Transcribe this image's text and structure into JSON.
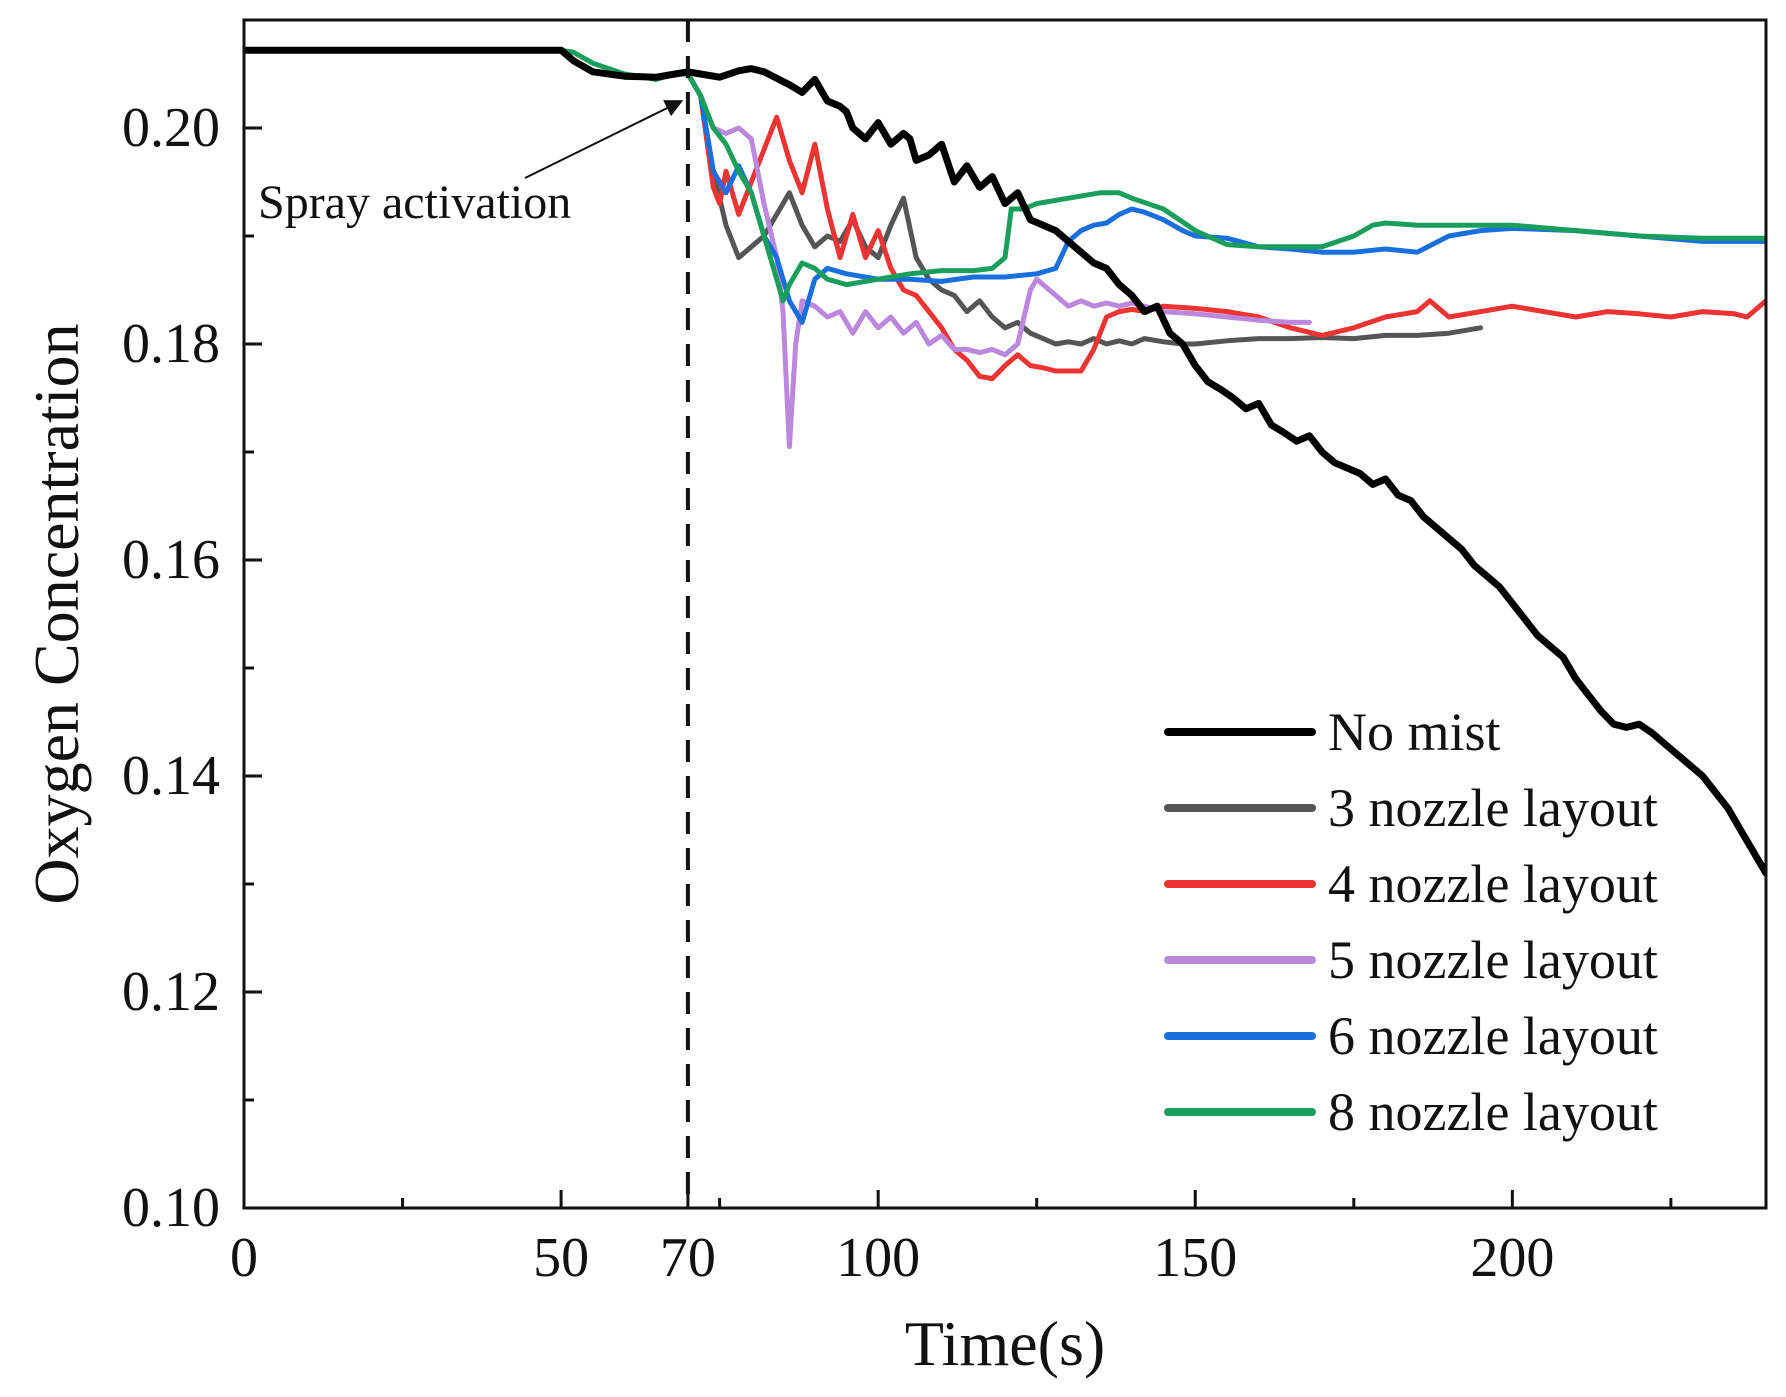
{
  "chart_data": {
    "type": "line",
    "title": "",
    "xlabel": "Time(s)",
    "ylabel": "Oxygen Concentration",
    "xlim": [
      0,
      240
    ],
    "ylim": [
      0.1,
      0.21
    ],
    "x_ticks": [
      0,
      50,
      70,
      100,
      150,
      200
    ],
    "x_tick_labels": [
      "0",
      "50",
      "70",
      "100",
      "150",
      "200"
    ],
    "x_minor_ticks": [
      25,
      75,
      125,
      175,
      225
    ],
    "y_ticks": [
      0.1,
      0.12,
      0.14,
      0.16,
      0.18,
      0.2
    ],
    "y_tick_labels": [
      "0.10",
      "0.12",
      "0.14",
      "0.16",
      "0.18",
      "0.20"
    ],
    "y_minor_ticks": [
      0.11,
      0.13,
      0.15,
      0.17,
      0.19
    ],
    "grid": false,
    "legend_position": "bottom-right",
    "annotation": {
      "text": "Spray activation",
      "time": 70,
      "arrow_to": [
        69,
        0.2025
      ]
    },
    "series": [
      {
        "name": "No mist",
        "color": "#000000",
        "x": [
          0,
          50,
          52,
          55,
          60,
          65,
          68,
          70,
          72,
          75,
          78,
          80,
          82,
          84,
          86,
          88,
          90,
          92,
          94,
          95,
          96,
          98,
          100,
          102,
          104,
          105,
          106,
          108,
          110,
          112,
          114,
          116,
          118,
          120,
          122,
          124,
          126,
          128,
          130,
          132,
          134,
          136,
          138,
          140,
          142,
          144,
          146,
          148,
          150,
          152,
          154,
          156,
          158,
          160,
          162,
          164,
          166,
          168,
          170,
          172,
          174,
          176,
          178,
          180,
          182,
          184,
          186,
          188,
          190,
          192,
          194,
          196,
          198,
          200,
          202,
          204,
          206,
          208,
          210,
          212,
          214,
          216,
          218,
          220,
          222,
          224,
          226,
          228,
          230,
          232,
          234,
          236,
          238,
          240
        ],
        "y": [
          0.2072,
          0.2072,
          0.2062,
          0.2052,
          0.2048,
          0.2047,
          0.205,
          0.2052,
          0.205,
          0.2047,
          0.2053,
          0.2055,
          0.2052,
          0.2046,
          0.204,
          0.2033,
          0.2045,
          0.2025,
          0.202,
          0.2015,
          0.2,
          0.199,
          0.2005,
          0.1985,
          0.1995,
          0.199,
          0.197,
          0.1975,
          0.1985,
          0.195,
          0.1965,
          0.1945,
          0.1955,
          0.193,
          0.194,
          0.1915,
          0.191,
          0.1905,
          0.1895,
          0.1885,
          0.1875,
          0.187,
          0.1855,
          0.1845,
          0.183,
          0.1835,
          0.181,
          0.18,
          0.178,
          0.1765,
          0.1758,
          0.175,
          0.174,
          0.1745,
          0.1725,
          0.1718,
          0.171,
          0.1715,
          0.17,
          0.169,
          0.1685,
          0.168,
          0.167,
          0.1675,
          0.166,
          0.1655,
          0.164,
          0.163,
          0.162,
          0.161,
          0.1595,
          0.1585,
          0.1575,
          0.156,
          0.1545,
          0.153,
          0.152,
          0.151,
          0.149,
          0.1475,
          0.146,
          0.1448,
          0.1445,
          0.1448,
          0.144,
          0.143,
          0.142,
          0.141,
          0.14,
          0.1385,
          0.137,
          0.135,
          0.133,
          0.131
        ]
      },
      {
        "name": "3 nozzle layout",
        "color": "#555555",
        "x": [
          52,
          55,
          60,
          65,
          68,
          70,
          72,
          74,
          76,
          78,
          80,
          82,
          84,
          86,
          88,
          90,
          92,
          94,
          96,
          98,
          100,
          102,
          104,
          106,
          108,
          110,
          112,
          114,
          116,
          118,
          120,
          122,
          124,
          126,
          128,
          130,
          132,
          134,
          136,
          138,
          140,
          142,
          145,
          148,
          150,
          155,
          160,
          165,
          170,
          175,
          180,
          185,
          190,
          195
        ],
        "y": [
          0.2062,
          0.2052,
          0.2048,
          0.2047,
          0.205,
          0.205,
          0.203,
          0.196,
          0.191,
          0.188,
          0.189,
          0.19,
          0.192,
          0.194,
          0.191,
          0.189,
          0.19,
          0.1895,
          0.1915,
          0.189,
          0.188,
          0.191,
          0.1935,
          0.188,
          0.186,
          0.185,
          0.1845,
          0.183,
          0.184,
          0.1825,
          0.1815,
          0.182,
          0.181,
          0.1805,
          0.18,
          0.1802,
          0.18,
          0.1805,
          0.18,
          0.1803,
          0.18,
          0.1805,
          0.1802,
          0.18,
          0.18,
          0.1803,
          0.1805,
          0.1805,
          0.1806,
          0.1805,
          0.1808,
          0.1808,
          0.181,
          0.1815
        ]
      },
      {
        "name": "4 nozzle layout",
        "color": "#ee3333",
        "x": [
          52,
          55,
          60,
          65,
          68,
          70,
          72,
          74,
          75,
          76,
          78,
          80,
          82,
          84,
          86,
          88,
          90,
          92,
          94,
          96,
          98,
          100,
          102,
          104,
          106,
          108,
          110,
          112,
          114,
          116,
          118,
          120,
          122,
          124,
          126,
          128,
          130,
          132,
          134,
          136,
          138,
          140,
          142,
          145,
          150,
          155,
          160,
          165,
          170,
          175,
          180,
          185,
          187,
          190,
          195,
          200,
          205,
          210,
          215,
          220,
          225,
          230,
          235,
          237,
          240
        ],
        "y": [
          0.2062,
          0.2052,
          0.2048,
          0.2047,
          0.205,
          0.205,
          0.203,
          0.1945,
          0.193,
          0.196,
          0.192,
          0.195,
          0.198,
          0.201,
          0.197,
          0.194,
          0.1985,
          0.1925,
          0.188,
          0.192,
          0.188,
          0.1905,
          0.187,
          0.185,
          0.1845,
          0.183,
          0.1815,
          0.1795,
          0.1785,
          0.177,
          0.1768,
          0.178,
          0.179,
          0.178,
          0.1778,
          0.1775,
          0.1775,
          0.1775,
          0.1795,
          0.1825,
          0.183,
          0.1832,
          0.183,
          0.1835,
          0.1833,
          0.183,
          0.1825,
          0.1815,
          0.1808,
          0.1815,
          0.1825,
          0.183,
          0.184,
          0.1825,
          0.183,
          0.1835,
          0.183,
          0.1825,
          0.183,
          0.1828,
          0.1825,
          0.183,
          0.1828,
          0.1825,
          0.184
        ]
      },
      {
        "name": "5 nozzle layout",
        "color": "#bb88dd",
        "x": [
          72,
          74,
          76,
          78,
          80,
          82,
          84,
          85,
          86,
          87,
          88,
          90,
          92,
          94,
          96,
          98,
          100,
          102,
          104,
          106,
          108,
          110,
          112,
          114,
          116,
          118,
          120,
          122,
          124,
          125,
          126,
          128,
          130,
          132,
          134,
          136,
          138,
          140,
          142,
          145,
          150,
          155,
          160,
          165,
          168
        ],
        "y": [
          0.203,
          0.2,
          0.1995,
          0.2,
          0.199,
          0.193,
          0.188,
          0.183,
          0.1705,
          0.18,
          0.184,
          0.1835,
          0.1825,
          0.183,
          0.181,
          0.183,
          0.1815,
          0.1825,
          0.181,
          0.182,
          0.18,
          0.1808,
          0.1795,
          0.1795,
          0.1792,
          0.1795,
          0.179,
          0.18,
          0.185,
          0.186,
          0.1855,
          0.1845,
          0.1835,
          0.184,
          0.1835,
          0.1838,
          0.1835,
          0.1838,
          0.1835,
          0.183,
          0.1828,
          0.1825,
          0.1822,
          0.182,
          0.182
        ]
      },
      {
        "name": "6 nozzle layout",
        "color": "#1a6fdf",
        "x": [
          52,
          55,
          60,
          65,
          68,
          70,
          72,
          74,
          76,
          78,
          80,
          82,
          84,
          86,
          88,
          90,
          92,
          95,
          100,
          105,
          110,
          115,
          120,
          125,
          128,
          130,
          132,
          134,
          136,
          138,
          140,
          142,
          145,
          148,
          150,
          155,
          160,
          165,
          170,
          175,
          180,
          185,
          190,
          195,
          200,
          210,
          220,
          230,
          240
        ],
        "y": [
          0.2062,
          0.2052,
          0.2048,
          0.2047,
          0.205,
          0.205,
          0.203,
          0.196,
          0.194,
          0.1965,
          0.194,
          0.19,
          0.188,
          0.184,
          0.182,
          0.186,
          0.187,
          0.1865,
          0.186,
          0.186,
          0.1858,
          0.1862,
          0.1862,
          0.1865,
          0.187,
          0.1895,
          0.1905,
          0.191,
          0.1912,
          0.192,
          0.1925,
          0.1922,
          0.1915,
          0.1905,
          0.19,
          0.1898,
          0.189,
          0.1888,
          0.1885,
          0.1885,
          0.1888,
          0.1885,
          0.19,
          0.1905,
          0.1907,
          0.1905,
          0.19,
          0.1895,
          0.1895
        ]
      },
      {
        "name": "8 nozzle layout",
        "color": "#1a9e5c",
        "x": [
          50,
          52,
          55,
          60,
          65,
          68,
          70,
          72,
          74,
          76,
          78,
          80,
          82,
          84,
          85,
          86,
          88,
          90,
          92,
          95,
          100,
          105,
          110,
          115,
          118,
          120,
          121,
          123,
          125,
          130,
          135,
          138,
          140,
          145,
          150,
          155,
          160,
          165,
          170,
          175,
          178,
          180,
          185,
          190,
          200,
          210,
          220,
          230,
          240
        ],
        "y": [
          0.2072,
          0.207,
          0.206,
          0.205,
          0.2045,
          0.205,
          0.205,
          0.203,
          0.2,
          0.1985,
          0.196,
          0.194,
          0.19,
          0.186,
          0.184,
          0.1855,
          0.1875,
          0.187,
          0.186,
          0.1855,
          0.186,
          0.1865,
          0.1868,
          0.1868,
          0.187,
          0.188,
          0.1925,
          0.1925,
          0.193,
          0.1935,
          0.194,
          0.194,
          0.1935,
          0.1925,
          0.1905,
          0.1892,
          0.189,
          0.189,
          0.189,
          0.19,
          0.191,
          0.1912,
          0.191,
          0.191,
          0.191,
          0.1905,
          0.19,
          0.1898,
          0.1898
        ]
      }
    ]
  }
}
